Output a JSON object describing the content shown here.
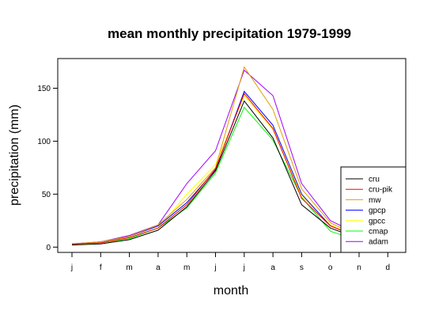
{
  "chart_data": {
    "type": "line",
    "title": "mean monthly precipitation 1979-1999",
    "xlabel": "month",
    "ylabel": "precipitation (mm)",
    "categories": [
      "j",
      "f",
      "m",
      "a",
      "m",
      "j",
      "j",
      "a",
      "s",
      "o",
      "n",
      "d"
    ],
    "ylim": [
      -5,
      178
    ],
    "yticks": [
      0,
      50,
      100,
      150
    ],
    "grid": false,
    "legend_position": "bottom-right",
    "series": [
      {
        "name": "cru",
        "color": "#000000",
        "values": [
          2,
          3,
          7,
          16,
          38,
          72,
          138,
          103,
          40,
          18,
          8,
          4
        ]
      },
      {
        "name": "cru-pik",
        "color": "#ff0000",
        "values": [
          3,
          4,
          9,
          18,
          40,
          74,
          145,
          112,
          46,
          20,
          9,
          5
        ]
      },
      {
        "name": "mw",
        "color": "#e0a000",
        "values": [
          3,
          5,
          10,
          21,
          45,
          75,
          170,
          130,
          55,
          23,
          10,
          5
        ]
      },
      {
        "name": "gpcp",
        "color": "#0000ff",
        "values": [
          3,
          5,
          10,
          20,
          42,
          73,
          147,
          115,
          50,
          20,
          9,
          5
        ]
      },
      {
        "name": "gpcc",
        "color": "#ffff00",
        "values": [
          2,
          4,
          9,
          18,
          50,
          78,
          143,
          111,
          48,
          21,
          9,
          5
        ]
      },
      {
        "name": "cmap",
        "color": "#00ff00",
        "values": [
          3,
          4,
          8,
          18,
          37,
          70,
          132,
          101,
          47,
          15,
          6,
          3
        ]
      },
      {
        "name": "adam",
        "color": "#a000ff",
        "values": [
          2,
          5,
          11,
          21,
          60,
          91,
          167,
          143,
          60,
          25,
          12,
          6
        ]
      }
    ]
  }
}
